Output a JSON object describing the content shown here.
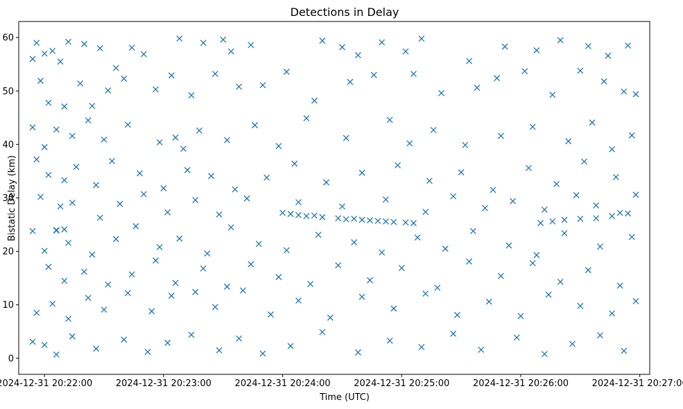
{
  "chart_data": {
    "type": "scatter",
    "title": "Detections in Delay",
    "xlabel": "Time (UTC)",
    "ylabel": "Bistatic Delay (km)",
    "x_axis_kind": "datetime",
    "xlim": [
      "2024-12-31 20:21:47",
      "2024-12-31 20:27:05"
    ],
    "ylim": [
      -3,
      63
    ],
    "x_ticks": [
      "2024-12-31 20:22:00",
      "2024-12-31 20:23:00",
      "2024-12-31 20:24:00",
      "2024-12-31 20:25:00",
      "2024-12-31 20:26:00",
      "2024-12-31 20:27:00"
    ],
    "y_ticks": [
      0,
      10,
      20,
      30,
      40,
      50,
      60
    ],
    "marker": "x",
    "color": "#1f77b4",
    "grid": false,
    "legend": "none",
    "series": [
      {
        "points": [
          [
            "2024-12-31 20:21:54",
            56
          ],
          [
            "2024-12-31 20:21:56",
            59
          ],
          [
            "2024-12-31 20:22:00",
            57
          ],
          [
            "2024-12-31 20:22:04",
            57.5
          ],
          [
            "2024-12-31 20:22:08",
            55.5
          ],
          [
            "2024-12-31 20:22:12",
            59.2
          ],
          [
            "2024-12-31 20:22:20",
            58.8
          ],
          [
            "2024-12-31 20:22:28",
            58
          ],
          [
            "2024-12-31 20:22:36",
            54.3
          ],
          [
            "2024-12-31 20:22:44",
            58.1
          ],
          [
            "2024-12-31 20:22:50",
            56.9
          ],
          [
            "2024-12-31 20:23:08",
            59.8
          ],
          [
            "2024-12-31 20:23:20",
            59
          ],
          [
            "2024-12-31 20:23:30",
            59.6
          ],
          [
            "2024-12-31 20:23:34",
            57.4
          ],
          [
            "2024-12-31 20:23:44",
            58.6
          ],
          [
            "2024-12-31 20:24:20",
            59.4
          ],
          [
            "2024-12-31 20:24:30",
            58.2
          ],
          [
            "2024-12-31 20:24:38",
            56.7
          ],
          [
            "2024-12-31 20:24:50",
            59.1
          ],
          [
            "2024-12-31 20:25:02",
            57.4
          ],
          [
            "2024-12-31 20:25:10",
            59.8
          ],
          [
            "2024-12-31 20:25:34",
            55.6
          ],
          [
            "2024-12-31 20:25:52",
            58.3
          ],
          [
            "2024-12-31 20:26:08",
            57.6
          ],
          [
            "2024-12-31 20:26:20",
            59.5
          ],
          [
            "2024-12-31 20:26:34",
            58.4
          ],
          [
            "2024-12-31 20:26:44",
            56.6
          ],
          [
            "2024-12-31 20:26:54",
            58.5
          ],
          [
            "2024-12-31 20:21:58",
            51.9
          ],
          [
            "2024-12-31 20:22:02",
            47.8
          ],
          [
            "2024-12-31 20:22:10",
            47.1
          ],
          [
            "2024-12-31 20:22:18",
            51.4
          ],
          [
            "2024-12-31 20:22:24",
            47.2
          ],
          [
            "2024-12-31 20:22:32",
            50.1
          ],
          [
            "2024-12-31 20:22:40",
            52.3
          ],
          [
            "2024-12-31 20:22:56",
            50.3
          ],
          [
            "2024-12-31 20:23:04",
            52.9
          ],
          [
            "2024-12-31 20:23:14",
            49.2
          ],
          [
            "2024-12-31 20:23:26",
            53.2
          ],
          [
            "2024-12-31 20:23:38",
            50.8
          ],
          [
            "2024-12-31 20:23:50",
            51.1
          ],
          [
            "2024-12-31 20:24:02",
            53.6
          ],
          [
            "2024-12-31 20:24:16",
            48.2
          ],
          [
            "2024-12-31 20:24:34",
            51.7
          ],
          [
            "2024-12-31 20:24:46",
            53
          ],
          [
            "2024-12-31 20:25:06",
            53.2
          ],
          [
            "2024-12-31 20:25:20",
            49.6
          ],
          [
            "2024-12-31 20:25:38",
            50.6
          ],
          [
            "2024-12-31 20:25:48",
            52.4
          ],
          [
            "2024-12-31 20:26:02",
            53.7
          ],
          [
            "2024-12-31 20:26:16",
            49.3
          ],
          [
            "2024-12-31 20:26:30",
            53.8
          ],
          [
            "2024-12-31 20:26:42",
            51.8
          ],
          [
            "2024-12-31 20:26:52",
            49.9
          ],
          [
            "2024-12-31 20:26:58",
            49.4
          ],
          [
            "2024-12-31 20:21:54",
            43.2
          ],
          [
            "2024-12-31 20:22:00",
            39.5
          ],
          [
            "2024-12-31 20:22:06",
            42.8
          ],
          [
            "2024-12-31 20:22:14",
            41.6
          ],
          [
            "2024-12-31 20:22:22",
            44.5
          ],
          [
            "2024-12-31 20:22:30",
            40.9
          ],
          [
            "2024-12-31 20:22:42",
            43.7
          ],
          [
            "2024-12-31 20:22:58",
            40.4
          ],
          [
            "2024-12-31 20:23:06",
            41.3
          ],
          [
            "2024-12-31 20:23:10",
            39.2
          ],
          [
            "2024-12-31 20:23:18",
            42.6
          ],
          [
            "2024-12-31 20:23:32",
            40.8
          ],
          [
            "2024-12-31 20:23:46",
            43.6
          ],
          [
            "2024-12-31 20:23:58",
            39.7
          ],
          [
            "2024-12-31 20:24:12",
            44.9
          ],
          [
            "2024-12-31 20:24:32",
            41.2
          ],
          [
            "2024-12-31 20:24:54",
            44.6
          ],
          [
            "2024-12-31 20:25:04",
            40.2
          ],
          [
            "2024-12-31 20:25:16",
            42.7
          ],
          [
            "2024-12-31 20:25:32",
            39.9
          ],
          [
            "2024-12-31 20:25:50",
            41.6
          ],
          [
            "2024-12-31 20:26:06",
            43.3
          ],
          [
            "2024-12-31 20:26:24",
            40.6
          ],
          [
            "2024-12-31 20:26:36",
            44.1
          ],
          [
            "2024-12-31 20:26:46",
            39.1
          ],
          [
            "2024-12-31 20:26:56",
            41.7
          ],
          [
            "2024-12-31 20:21:56",
            37.2
          ],
          [
            "2024-12-31 20:22:02",
            34.3
          ],
          [
            "2024-12-31 20:22:10",
            33.3
          ],
          [
            "2024-12-31 20:22:16",
            35.8
          ],
          [
            "2024-12-31 20:22:26",
            32.4
          ],
          [
            "2024-12-31 20:22:34",
            36.9
          ],
          [
            "2024-12-31 20:22:48",
            34.6
          ],
          [
            "2024-12-31 20:23:00",
            31.8
          ],
          [
            "2024-12-31 20:23:12",
            35.2
          ],
          [
            "2024-12-31 20:23:24",
            34.1
          ],
          [
            "2024-12-31 20:23:36",
            31.6
          ],
          [
            "2024-12-31 20:23:52",
            33.8
          ],
          [
            "2024-12-31 20:24:06",
            36.4
          ],
          [
            "2024-12-31 20:24:22",
            32.9
          ],
          [
            "2024-12-31 20:24:40",
            34.7
          ],
          [
            "2024-12-31 20:24:58",
            36.1
          ],
          [
            "2024-12-31 20:25:14",
            33.2
          ],
          [
            "2024-12-31 20:25:30",
            34.8
          ],
          [
            "2024-12-31 20:25:46",
            31.5
          ],
          [
            "2024-12-31 20:26:04",
            35.6
          ],
          [
            "2024-12-31 20:26:18",
            32.6
          ],
          [
            "2024-12-31 20:26:32",
            36.8
          ],
          [
            "2024-12-31 20:26:48",
            33.9
          ],
          [
            "2024-12-31 20:26:58",
            30.6
          ],
          [
            "2024-12-31 20:21:58",
            30.2
          ],
          [
            "2024-12-31 20:22:08",
            28.4
          ],
          [
            "2024-12-31 20:22:14",
            29.1
          ],
          [
            "2024-12-31 20:22:28",
            26.3
          ],
          [
            "2024-12-31 20:22:38",
            28.9
          ],
          [
            "2024-12-31 20:22:50",
            30.7
          ],
          [
            "2024-12-31 20:23:02",
            27.3
          ],
          [
            "2024-12-31 20:23:16",
            29.6
          ],
          [
            "2024-12-31 20:23:28",
            26.9
          ],
          [
            "2024-12-31 20:23:42",
            29.9
          ],
          [
            "2024-12-31 20:24:08",
            29.2
          ],
          [
            "2024-12-31 20:24:30",
            28.4
          ],
          [
            "2024-12-31 20:24:52",
            29.7
          ],
          [
            "2024-12-31 20:25:12",
            27.4
          ],
          [
            "2024-12-31 20:25:26",
            30.3
          ],
          [
            "2024-12-31 20:25:42",
            28.1
          ],
          [
            "2024-12-31 20:25:56",
            29.4
          ],
          [
            "2024-12-31 20:26:12",
            27.8
          ],
          [
            "2024-12-31 20:26:28",
            30.5
          ],
          [
            "2024-12-31 20:26:38",
            28.6
          ],
          [
            "2024-12-31 20:26:50",
            27.2
          ],
          [
            "2024-12-31 20:21:54",
            23.8
          ],
          [
            "2024-12-31 20:22:00",
            20.1
          ],
          [
            "2024-12-31 20:22:06",
            24
          ],
          [
            "2024-12-31 20:22:12",
            21.6
          ],
          [
            "2024-12-31 20:22:24",
            19.4
          ],
          [
            "2024-12-31 20:22:36",
            22.3
          ],
          [
            "2024-12-31 20:22:46",
            24.7
          ],
          [
            "2024-12-31 20:22:58",
            20.8
          ],
          [
            "2024-12-31 20:23:08",
            22.4
          ],
          [
            "2024-12-31 20:23:22",
            19.6
          ],
          [
            "2024-12-31 20:23:34",
            24.5
          ],
          [
            "2024-12-31 20:23:48",
            21.4
          ],
          [
            "2024-12-31 20:24:02",
            20.2
          ],
          [
            "2024-12-31 20:24:18",
            23.1
          ],
          [
            "2024-12-31 20:24:36",
            21.7
          ],
          [
            "2024-12-31 20:24:50",
            19.8
          ],
          [
            "2024-12-31 20:25:08",
            22.6
          ],
          [
            "2024-12-31 20:25:22",
            20.5
          ],
          [
            "2024-12-31 20:25:36",
            23.8
          ],
          [
            "2024-12-31 20:25:54",
            21.1
          ],
          [
            "2024-12-31 20:26:08",
            19.3
          ],
          [
            "2024-12-31 20:26:22",
            23.4
          ],
          [
            "2024-12-31 20:26:40",
            20.9
          ],
          [
            "2024-12-31 20:26:56",
            22.7
          ],
          [
            "2024-12-31 20:22:02",
            17.1
          ],
          [
            "2024-12-31 20:22:10",
            14.5
          ],
          [
            "2024-12-31 20:22:20",
            16.2
          ],
          [
            "2024-12-31 20:22:32",
            13.8
          ],
          [
            "2024-12-31 20:22:44",
            15.7
          ],
          [
            "2024-12-31 20:22:56",
            18.3
          ],
          [
            "2024-12-31 20:23:06",
            14.1
          ],
          [
            "2024-12-31 20:23:20",
            16.8
          ],
          [
            "2024-12-31 20:23:32",
            13.4
          ],
          [
            "2024-12-31 20:23:44",
            17.6
          ],
          [
            "2024-12-31 20:23:58",
            15.2
          ],
          [
            "2024-12-31 20:24:14",
            13.9
          ],
          [
            "2024-12-31 20:24:28",
            17.4
          ],
          [
            "2024-12-31 20:24:44",
            14.6
          ],
          [
            "2024-12-31 20:25:00",
            16.9
          ],
          [
            "2024-12-31 20:25:18",
            13.2
          ],
          [
            "2024-12-31 20:25:34",
            18.1
          ],
          [
            "2024-12-31 20:25:50",
            15.4
          ],
          [
            "2024-12-31 20:26:06",
            17.8
          ],
          [
            "2024-12-31 20:26:20",
            14.3
          ],
          [
            "2024-12-31 20:26:34",
            16.5
          ],
          [
            "2024-12-31 20:26:50",
            13.6
          ],
          [
            "2024-12-31 20:21:56",
            8.5
          ],
          [
            "2024-12-31 20:22:04",
            10.2
          ],
          [
            "2024-12-31 20:22:12",
            7.4
          ],
          [
            "2024-12-31 20:22:22",
            11.3
          ],
          [
            "2024-12-31 20:22:30",
            9.1
          ],
          [
            "2024-12-31 20:22:42",
            12.2
          ],
          [
            "2024-12-31 20:22:54",
            8.8
          ],
          [
            "2024-12-31 20:23:04",
            11.7
          ],
          [
            "2024-12-31 20:23:16",
            12.4
          ],
          [
            "2024-12-31 20:23:26",
            9.6
          ],
          [
            "2024-12-31 20:23:40",
            12.7
          ],
          [
            "2024-12-31 20:23:54",
            8.2
          ],
          [
            "2024-12-31 20:24:08",
            10.8
          ],
          [
            "2024-12-31 20:24:24",
            7.6
          ],
          [
            "2024-12-31 20:24:40",
            11.5
          ],
          [
            "2024-12-31 20:24:56",
            9.3
          ],
          [
            "2024-12-31 20:25:12",
            12.1
          ],
          [
            "2024-12-31 20:25:28",
            8.1
          ],
          [
            "2024-12-31 20:25:44",
            10.6
          ],
          [
            "2024-12-31 20:26:00",
            7.9
          ],
          [
            "2024-12-31 20:26:14",
            11.9
          ],
          [
            "2024-12-31 20:26:30",
            9.8
          ],
          [
            "2024-12-31 20:26:46",
            8.4
          ],
          [
            "2024-12-31 20:26:58",
            10.7
          ],
          [
            "2024-12-31 20:21:54",
            3.1
          ],
          [
            "2024-12-31 20:22:00",
            2.5
          ],
          [
            "2024-12-31 20:22:06",
            0.7
          ],
          [
            "2024-12-31 20:22:14",
            4.1
          ],
          [
            "2024-12-31 20:22:26",
            1.8
          ],
          [
            "2024-12-31 20:22:40",
            3.5
          ],
          [
            "2024-12-31 20:22:52",
            1.2
          ],
          [
            "2024-12-31 20:23:02",
            2.9
          ],
          [
            "2024-12-31 20:23:14",
            4.4
          ],
          [
            "2024-12-31 20:23:28",
            1.5
          ],
          [
            "2024-12-31 20:23:38",
            3.7
          ],
          [
            "2024-12-31 20:23:50",
            0.9
          ],
          [
            "2024-12-31 20:24:04",
            2.3
          ],
          [
            "2024-12-31 20:24:20",
            4.9
          ],
          [
            "2024-12-31 20:24:38",
            1.1
          ],
          [
            "2024-12-31 20:24:54",
            3.3
          ],
          [
            "2024-12-31 20:25:10",
            2.1
          ],
          [
            "2024-12-31 20:25:26",
            4.6
          ],
          [
            "2024-12-31 20:25:40",
            1.6
          ],
          [
            "2024-12-31 20:25:58",
            3.9
          ],
          [
            "2024-12-31 20:26:12",
            0.8
          ],
          [
            "2024-12-31 20:26:26",
            2.7
          ],
          [
            "2024-12-31 20:26:40",
            4.3
          ],
          [
            "2024-12-31 20:26:52",
            1.4
          ],
          [
            "2024-12-31 20:24:00",
            27.2
          ],
          [
            "2024-12-31 20:24:04",
            27.0
          ],
          [
            "2024-12-31 20:24:08",
            26.8
          ],
          [
            "2024-12-31 20:24:12",
            26.6
          ],
          [
            "2024-12-31 20:24:16",
            26.7
          ],
          [
            "2024-12-31 20:24:20",
            26.4
          ],
          [
            "2024-12-31 20:24:28",
            26.2
          ],
          [
            "2024-12-31 20:24:32",
            26.0
          ],
          [
            "2024-12-31 20:24:36",
            26.1
          ],
          [
            "2024-12-31 20:24:40",
            25.9
          ],
          [
            "2024-12-31 20:24:44",
            25.8
          ],
          [
            "2024-12-31 20:24:48",
            25.7
          ],
          [
            "2024-12-31 20:24:52",
            25.6
          ],
          [
            "2024-12-31 20:24:56",
            25.5
          ],
          [
            "2024-12-31 20:25:02",
            25.4
          ],
          [
            "2024-12-31 20:25:06",
            25.3
          ],
          [
            "2024-12-31 20:26:10",
            25.3
          ],
          [
            "2024-12-31 20:26:16",
            25.6
          ],
          [
            "2024-12-31 20:26:22",
            25.9
          ],
          [
            "2024-12-31 20:26:30",
            26.1
          ],
          [
            "2024-12-31 20:26:38",
            26.2
          ],
          [
            "2024-12-31 20:26:46",
            26.6
          ],
          [
            "2024-12-31 20:26:54",
            27.1
          ],
          [
            "2024-12-31 20:22:06",
            23.9
          ],
          [
            "2024-12-31 20:22:10",
            24.1
          ]
        ]
      }
    ]
  }
}
